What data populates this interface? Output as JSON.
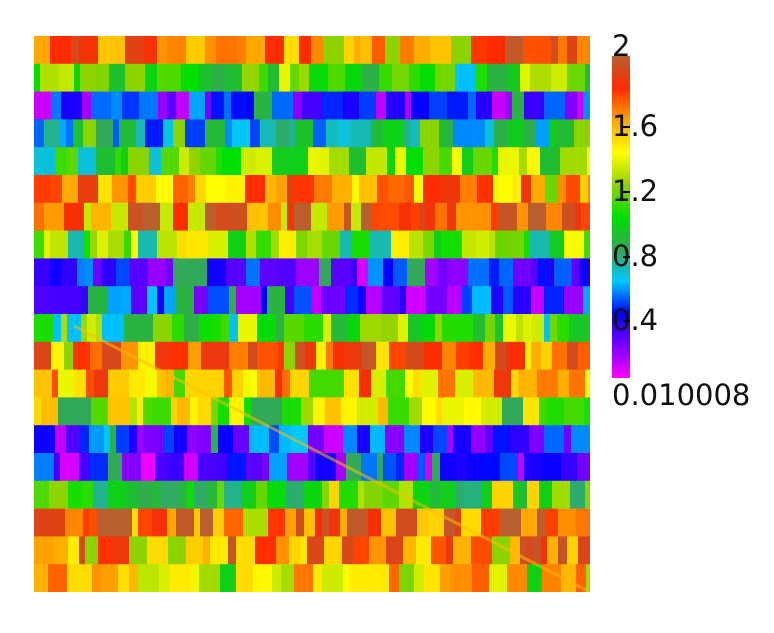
{
  "chart_data": {
    "type": "heatmap",
    "title": "",
    "xlabel": "",
    "ylabel": "",
    "colorbar": {
      "min": 0.010008,
      "max": 2,
      "min_label": "0.010008",
      "max_label": "2",
      "ticks": [
        {
          "value": 1.6,
          "label": "1.6"
        },
        {
          "value": 1.2,
          "label": "1.2"
        },
        {
          "value": 0.8,
          "label": "0.8"
        },
        {
          "value": 0.4,
          "label": "0.4"
        }
      ],
      "colors": [
        "#ff00ff",
        "#7a00ff",
        "#0000ff",
        "#00c8ff",
        "#34a853",
        "#00e000",
        "#8fd400",
        "#ffff00",
        "#ffa500",
        "#ff2a00",
        "#b86030"
      ]
    },
    "rows": 20,
    "row_values": [
      1.7,
      1.1,
      0.35,
      0.7,
      1.15,
      1.65,
      1.8,
      1.2,
      0.3,
      0.35,
      1.1,
      1.7,
      1.6,
      1.3,
      0.35,
      0.3,
      1.0,
      1.75,
      1.7,
      1.45
    ]
  }
}
